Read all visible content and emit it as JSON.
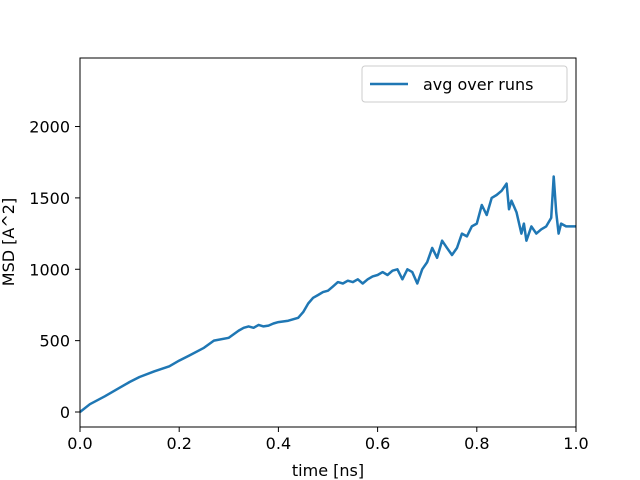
{
  "chart_data": {
    "type": "line",
    "title": "",
    "xlabel": "time [ns]",
    "ylabel": "MSD [A^2]",
    "xlim": [
      0.0,
      1.0
    ],
    "ylim": [
      -105,
      2480
    ],
    "xticks": [
      "0.0",
      "0.2",
      "0.4",
      "0.6",
      "0.8",
      "1.0"
    ],
    "yticks": [
      "0",
      "500",
      "1000",
      "1500",
      "2000"
    ],
    "grid": false,
    "legend_position": "top-right",
    "series": [
      {
        "name": "avg over runs",
        "color": "#1f77b4",
        "x": [
          0.0,
          0.02,
          0.05,
          0.08,
          0.1,
          0.12,
          0.15,
          0.18,
          0.2,
          0.22,
          0.25,
          0.27,
          0.3,
          0.32,
          0.33,
          0.34,
          0.35,
          0.36,
          0.37,
          0.38,
          0.39,
          0.4,
          0.42,
          0.44,
          0.45,
          0.46,
          0.47,
          0.48,
          0.49,
          0.5,
          0.51,
          0.52,
          0.53,
          0.54,
          0.55,
          0.56,
          0.57,
          0.58,
          0.59,
          0.6,
          0.61,
          0.62,
          0.63,
          0.64,
          0.65,
          0.66,
          0.67,
          0.68,
          0.69,
          0.7,
          0.71,
          0.72,
          0.73,
          0.74,
          0.75,
          0.76,
          0.77,
          0.78,
          0.79,
          0.8,
          0.81,
          0.82,
          0.83,
          0.84,
          0.85,
          0.86,
          0.865,
          0.87,
          0.88,
          0.89,
          0.895,
          0.9,
          0.91,
          0.92,
          0.93,
          0.94,
          0.95,
          0.955,
          0.96,
          0.965,
          0.97,
          0.98,
          0.99,
          1.0
        ],
        "y": [
          0,
          55,
          110,
          170,
          210,
          245,
          285,
          320,
          360,
          395,
          450,
          500,
          520,
          570,
          590,
          600,
          590,
          610,
          600,
          605,
          620,
          630,
          640,
          660,
          700,
          760,
          800,
          820,
          840,
          850,
          880,
          910,
          900,
          920,
          910,
          930,
          900,
          930,
          950,
          960,
          980,
          960,
          990,
          1000,
          930,
          1000,
          980,
          900,
          1000,
          1050,
          1150,
          1080,
          1200,
          1150,
          1100,
          1150,
          1250,
          1230,
          1300,
          1320,
          1450,
          1380,
          1500,
          1520,
          1550,
          1600,
          1420,
          1480,
          1400,
          1250,
          1320,
          1200,
          1300,
          1250,
          1280,
          1300,
          1360,
          1650,
          1400,
          1250,
          1320,
          1300,
          1300,
          1300
        ]
      }
    ]
  }
}
